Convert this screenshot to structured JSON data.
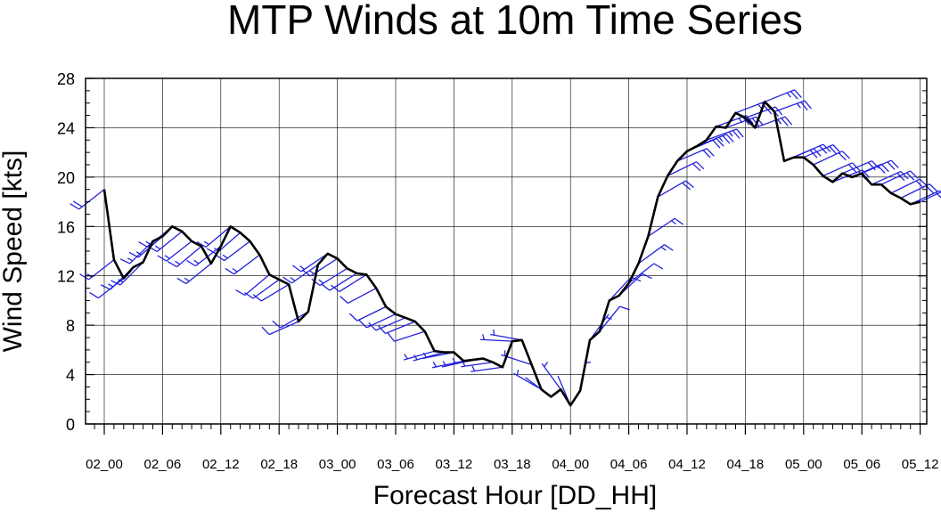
{
  "chart_data": {
    "type": "line",
    "title": "MTP Winds at 10m Time Series",
    "xlabel": "Forecast Hour [DD_HH]",
    "ylabel": "Wind Speed [kts]",
    "ylim": [
      0,
      28
    ],
    "xlim": [
      -1,
      83
    ],
    "y_ticks": [
      0,
      4,
      8,
      12,
      16,
      20,
      24,
      28
    ],
    "x_ticks": [
      {
        "hour": 0,
        "label": "02_00"
      },
      {
        "hour": 6,
        "label": "02_06"
      },
      {
        "hour": 12,
        "label": "02_12"
      },
      {
        "hour": 18,
        "label": "02_18"
      },
      {
        "hour": 24,
        "label": "03_00"
      },
      {
        "hour": 30,
        "label": "03_06"
      },
      {
        "hour": 36,
        "label": "03_12"
      },
      {
        "hour": 42,
        "label": "03_18"
      },
      {
        "hour": 48,
        "label": "04_00"
      },
      {
        "hour": 54,
        "label": "04_06"
      },
      {
        "hour": 60,
        "label": "04_12"
      },
      {
        "hour": 66,
        "label": "04_18"
      },
      {
        "hour": 72,
        "label": "05_00"
      },
      {
        "hour": 78,
        "label": "05_06"
      },
      {
        "hour": 84,
        "label": "05_12"
      }
    ],
    "grid": true,
    "series": [
      {
        "color": "#000000",
        "x": [
          0,
          1,
          2,
          3,
          4,
          5,
          6,
          7,
          8,
          9,
          10,
          11,
          12,
          13,
          14,
          15,
          16,
          17,
          18,
          19,
          20,
          21,
          22,
          23,
          24,
          25,
          26,
          27,
          28,
          29,
          30,
          31,
          32,
          33,
          34,
          35,
          36,
          37,
          38,
          39,
          40,
          41,
          42,
          43,
          44,
          45,
          46,
          47,
          48,
          49,
          50,
          51,
          52,
          53,
          54,
          55,
          56,
          57,
          58,
          59,
          60,
          61,
          62,
          63,
          64,
          65,
          66,
          67,
          68,
          69,
          70,
          71,
          72,
          73,
          74,
          75,
          76,
          77,
          78,
          79,
          80,
          81,
          82,
          83,
          84
        ],
        "y": [
          19.0,
          13.3,
          11.8,
          12.7,
          13.1,
          14.8,
          15.2,
          16.0,
          15.6,
          14.8,
          14.4,
          13.0,
          14.4,
          16.0,
          15.5,
          14.8,
          13.7,
          12.1,
          11.7,
          11.3,
          8.3,
          9.1,
          12.9,
          13.8,
          13.4,
          12.6,
          12.2,
          12.1,
          11.0,
          9.5,
          8.9,
          8.6,
          8.3,
          7.5,
          5.9,
          5.8,
          5.8,
          5.1,
          5.2,
          5.3,
          5.0,
          4.6,
          6.7,
          6.8,
          4.8,
          2.8,
          2.2,
          2.8,
          1.5,
          2.7,
          6.8,
          7.5,
          10.0,
          10.4,
          11.4,
          13.0,
          15.2,
          18.4,
          20.1,
          21.3,
          22.1,
          22.5,
          23.0,
          24.1,
          24.0,
          25.2,
          24.8,
          24.0,
          26.1,
          25.3,
          21.3,
          21.6,
          21.6,
          21.0,
          20.1,
          19.6,
          20.3,
          20.0,
          20.3,
          19.4,
          19.4,
          18.7,
          18.3,
          17.8,
          18.0
        ]
      }
    ]
  },
  "barbs": {
    "color": "#2222dd",
    "direction_from_deg": [
      232,
      232,
      232,
      226,
      225,
      226,
      229,
      230,
      231,
      232,
      230,
      231,
      232,
      230,
      229,
      233,
      233,
      230,
      234,
      239,
      246,
      240,
      235,
      236,
      237,
      238,
      238,
      238,
      242,
      244,
      245,
      247,
      248,
      252,
      254,
      255,
      259,
      258,
      257,
      260,
      262,
      262,
      273,
      280,
      288,
      300,
      307,
      324,
      337,
      10,
      36,
      39,
      43,
      47,
      52,
      54,
      56,
      60,
      64,
      67,
      67,
      68,
      70,
      70,
      70,
      69,
      70,
      70,
      68,
      70,
      67,
      66,
      67,
      65,
      66,
      68,
      67,
      66,
      66,
      66,
      65,
      64,
      64,
      65,
      65
    ]
  }
}
